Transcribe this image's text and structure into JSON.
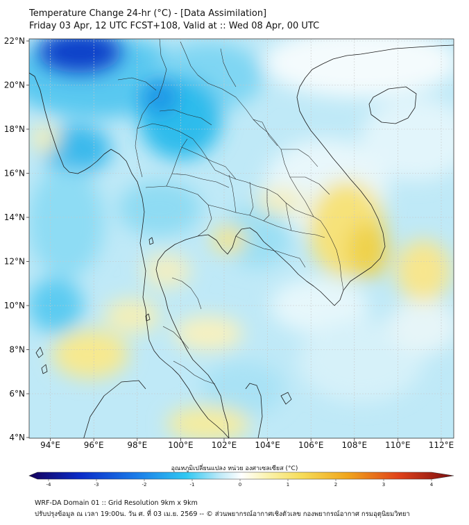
{
  "title_line1": "Temperature Change 24-hr (°C) - [Data Assimilation]",
  "title_line2": "Friday 03 Apr, 12 UTC FCST+108, Valid at :: Wed 08 Apr, 00 UTC",
  "map": {
    "lon_ticks": [
      "94°E",
      "96°E",
      "98°E",
      "100°E",
      "102°E",
      "104°E",
      "106°E",
      "108°E",
      "110°E",
      "112°E"
    ],
    "lat_ticks": [
      "22°N",
      "20°N",
      "18°N",
      "16°N",
      "14°N",
      "12°N",
      "10°N",
      "8°N",
      "6°N",
      "4°N"
    ]
  },
  "colorbar": {
    "title": "อุณหภูมิเปลี่ยนแปลง หน่วย องศาเซลเซียส (°C)",
    "range": [
      -4,
      4
    ],
    "ticks": [
      "-4",
      "-3",
      "-2",
      "-1",
      "0",
      "1",
      "2",
      "3",
      "4"
    ],
    "colors": {
      "min": "#14005a",
      "cold": "#0b4fd6",
      "cool": "#32c8f0",
      "neutral": "#ffffff",
      "warm": "#f8e26a",
      "hot": "#f07a12",
      "max": "#7a0d10"
    }
  },
  "footer_line1": "WRF-DA Domain 01 :: Grid Resolution 9km x 9km",
  "footer_line2": "ปรับปรุงข้อมูล ณ เวลา 19:00น. วัน ศ. ที่ 03 เม.ย. 2569 -- © ส่วนพยากรณ์อากาศเชิงตัวเลข กองพยากรณ์อากาศ กรมอุตุนิยมวิทยา"
}
